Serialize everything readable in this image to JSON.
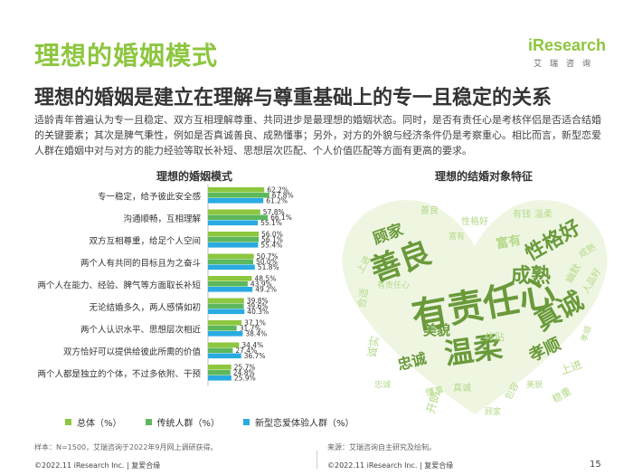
{
  "header": {
    "title": "理想的婚姻模式",
    "subtitle": "理想的婚姻是建立在理解与尊重基础上的专一且稳定的关系",
    "logo_text": "iResearch",
    "logo_sub": "艾瑞咨询"
  },
  "intro_text": "适龄青年普遍认为专一且稳定、双方互相理解尊重、共同进步是最理想的婚姻状态。同时，是否有责任心是考核伴侣是否适合结婚的关键要素；其次是脾气秉性，例如是否真诚善良、成熟懂事；另外，对方的外貌与经济条件仍是考察重心。相比而言，新型恋爱人群在婚姻中对与对方的能力经验等取长补短、思想层次匹配、个人价值匹配等方面有更高的要求。",
  "colors": {
    "overall": "#8dc63f",
    "traditional": "#5cb85c",
    "new": "#29abe2",
    "green": "#8dc63f",
    "cloud_light": "#b5d98a",
    "cloud_dark": "#6a9a3a"
  },
  "chart_data": {
    "type": "bar",
    "orientation": "horizontal",
    "title": "理想的婚姻模式",
    "unit": "%",
    "categories": [
      "专一稳定，给予彼此安全感",
      "沟通顺畅，互相理解",
      "双方互相尊重，给足个人空间",
      "两个人有共同的目标且为之奋斗",
      "两个人在能力、经验、脾气等方面取长补短",
      "无论结婚多久，两人感情如初",
      "两个人认识水平、思想层次相近",
      "双方恰好可以提供给彼此所需的价值",
      "两个人都是独立的个体，不过多依附、干预"
    ],
    "series": [
      {
        "name": "总体（%）",
        "values": [
          62.2,
          57.8,
          56.0,
          50.7,
          48.5,
          39.8,
          37.1,
          34.4,
          25.7
        ]
      },
      {
        "name": "传统人群（%）",
        "values": [
          67.8,
          66.1,
          56.1,
          50.0,
          43.9,
          39.6,
          31.7,
          27.4,
          24.8
        ]
      },
      {
        "name": "新型恋爱体验人群（%）",
        "values": [
          61.2,
          55.1,
          55.4,
          51.8,
          49.2,
          40.3,
          38.4,
          36.7,
          25.9
        ]
      }
    ],
    "value_labels": [
      [
        "62.2%",
        "67.8%",
        "61.2%"
      ],
      [
        "57.8%",
        "66.1%",
        "55.1%"
      ],
      [
        "56.0%",
        "56.1%",
        "55.4%"
      ],
      [
        "50.7%",
        "50.0%",
        "51.8%"
      ],
      [
        "48.5%",
        "43.9%",
        "49.2%"
      ],
      [
        "39.8%",
        "39.6%",
        "40.3%"
      ],
      [
        "37.1%",
        "31.7%",
        "38.4%"
      ],
      [
        "34.4%",
        "27.4%",
        "36.7%"
      ],
      [
        "25.7%",
        "24.8%",
        "25.9%"
      ]
    ],
    "xlim": [
      0,
      100
    ],
    "legend": "bottom"
  },
  "word_cloud": {
    "title": "理想的结婚对象特征",
    "words": [
      {
        "text": "有责任心",
        "size": 40,
        "weight": "bold",
        "shade": "dark"
      },
      {
        "text": "善良",
        "size": 34,
        "weight": "bold",
        "shade": "dark"
      },
      {
        "text": "温柔",
        "size": 32,
        "weight": "bold",
        "shade": "dark"
      },
      {
        "text": "真诚",
        "size": 28,
        "weight": "bold",
        "shade": "dark"
      },
      {
        "text": "性格好",
        "size": 22,
        "weight": "bold",
        "shade": "dark"
      },
      {
        "text": "成熟",
        "size": 22,
        "weight": "bold",
        "shade": "dark"
      },
      {
        "text": "顾家",
        "size": 17,
        "weight": "bold",
        "shade": "dark"
      },
      {
        "text": "孝顺",
        "size": 18,
        "weight": "bold",
        "shade": "dark"
      },
      {
        "text": "美貌",
        "size": 15,
        "weight": "bold",
        "shade": "dark"
      },
      {
        "text": "忠诚",
        "size": 16,
        "weight": "bold",
        "shade": "dark"
      },
      {
        "text": "富有",
        "size": 14,
        "weight": "bold",
        "shade": "light"
      },
      {
        "text": "开朗",
        "size": 12,
        "weight": "normal",
        "shade": "light"
      },
      {
        "text": "体贴",
        "size": 11,
        "weight": "normal",
        "shade": "light"
      },
      {
        "text": "上进",
        "size": 12,
        "weight": "normal",
        "shade": "light"
      },
      {
        "text": "诚实",
        "size": 12,
        "weight": "normal",
        "shade": "light"
      },
      {
        "text": "稳重",
        "size": 11,
        "weight": "normal",
        "shade": "light"
      },
      {
        "text": "幽默",
        "size": 11,
        "weight": "normal",
        "shade": "light"
      },
      {
        "text": "合适",
        "size": 11,
        "weight": "normal",
        "shade": "light"
      },
      {
        "text": "人品好",
        "size": 10,
        "weight": "normal",
        "shade": "light"
      },
      {
        "text": "懂事",
        "size": 10,
        "weight": "normal",
        "shade": "light"
      },
      {
        "text": "性格好",
        "size": 10,
        "weight": "normal",
        "shade": "light"
      },
      {
        "text": "温柔",
        "size": 10,
        "weight": "normal",
        "shade": "light"
      },
      {
        "text": "善良",
        "size": 10,
        "weight": "normal",
        "shade": "light"
      },
      {
        "text": "成熟",
        "size": 10,
        "weight": "normal",
        "shade": "light"
      },
      {
        "text": "真诚",
        "size": 10,
        "weight": "normal",
        "shade": "light"
      },
      {
        "text": "上进",
        "size": 10,
        "weight": "normal",
        "shade": "light"
      },
      {
        "text": "有钱",
        "size": 10,
        "weight": "normal",
        "shade": "light"
      },
      {
        "text": "有责任心",
        "size": 9,
        "weight": "normal",
        "shade": "light"
      },
      {
        "text": "包容",
        "size": 10,
        "weight": "normal",
        "shade": "light"
      },
      {
        "text": "顾家",
        "size": 9,
        "weight": "normal",
        "shade": "light"
      },
      {
        "text": "忠诚",
        "size": 9,
        "weight": "normal",
        "shade": "light"
      },
      {
        "text": "孝顺",
        "size": 9,
        "weight": "normal",
        "shade": "light"
      },
      {
        "text": "美貌",
        "size": 9,
        "weight": "normal",
        "shade": "light"
      },
      {
        "text": "富有",
        "size": 9,
        "weight": "normal",
        "shade": "light"
      }
    ]
  },
  "footer": {
    "note": "样本：N=1500，艾瑞咨询于2022年9月网上调研获得。",
    "source": "来源：艾瑞咨询自主研究及绘制。",
    "copyright_left": "©2022.11 iResearch Inc. | 复爱合缘",
    "copyright_right": "©2022.11 iResearch Inc. | 复爱合缘",
    "page": "15"
  }
}
